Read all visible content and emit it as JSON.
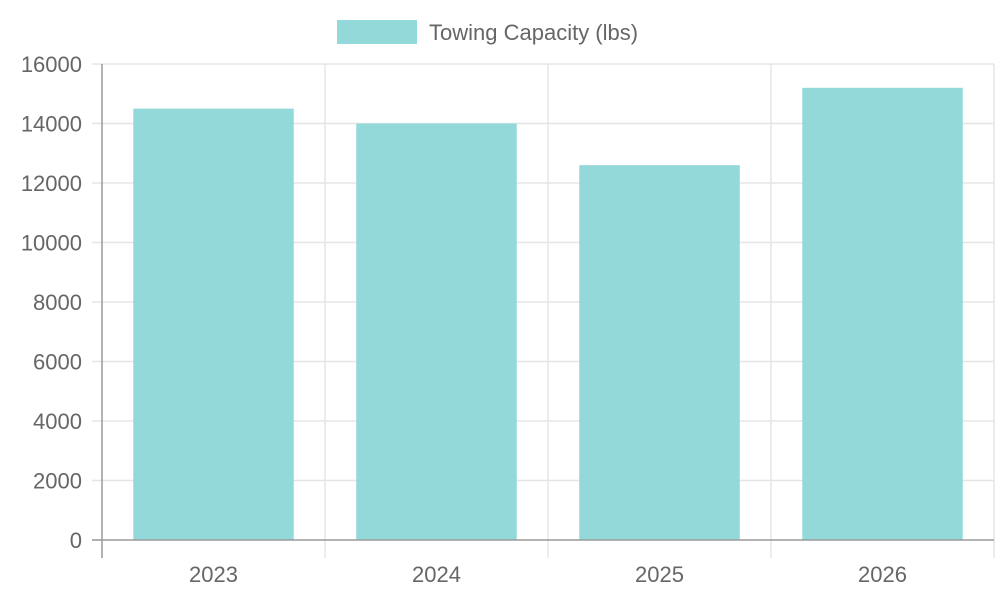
{
  "chart_data": {
    "type": "bar",
    "categories": [
      "2023",
      "2024",
      "2025",
      "2026"
    ],
    "series": [
      {
        "name": "Towing Capacity (lbs)",
        "values": [
          14500,
          14000,
          12600,
          15200
        ],
        "color": "#94D9D9"
      }
    ],
    "ylim": [
      0,
      16000
    ],
    "yticks": [
      0,
      2000,
      4000,
      6000,
      8000,
      10000,
      12000,
      14000,
      16000
    ],
    "grid": true,
    "legend_position": "top-center",
    "colors": {
      "bar_fill": "#94D9D9",
      "grid": "#e5e5e5",
      "axis": "#9a9a9a",
      "text": "#666666"
    }
  }
}
